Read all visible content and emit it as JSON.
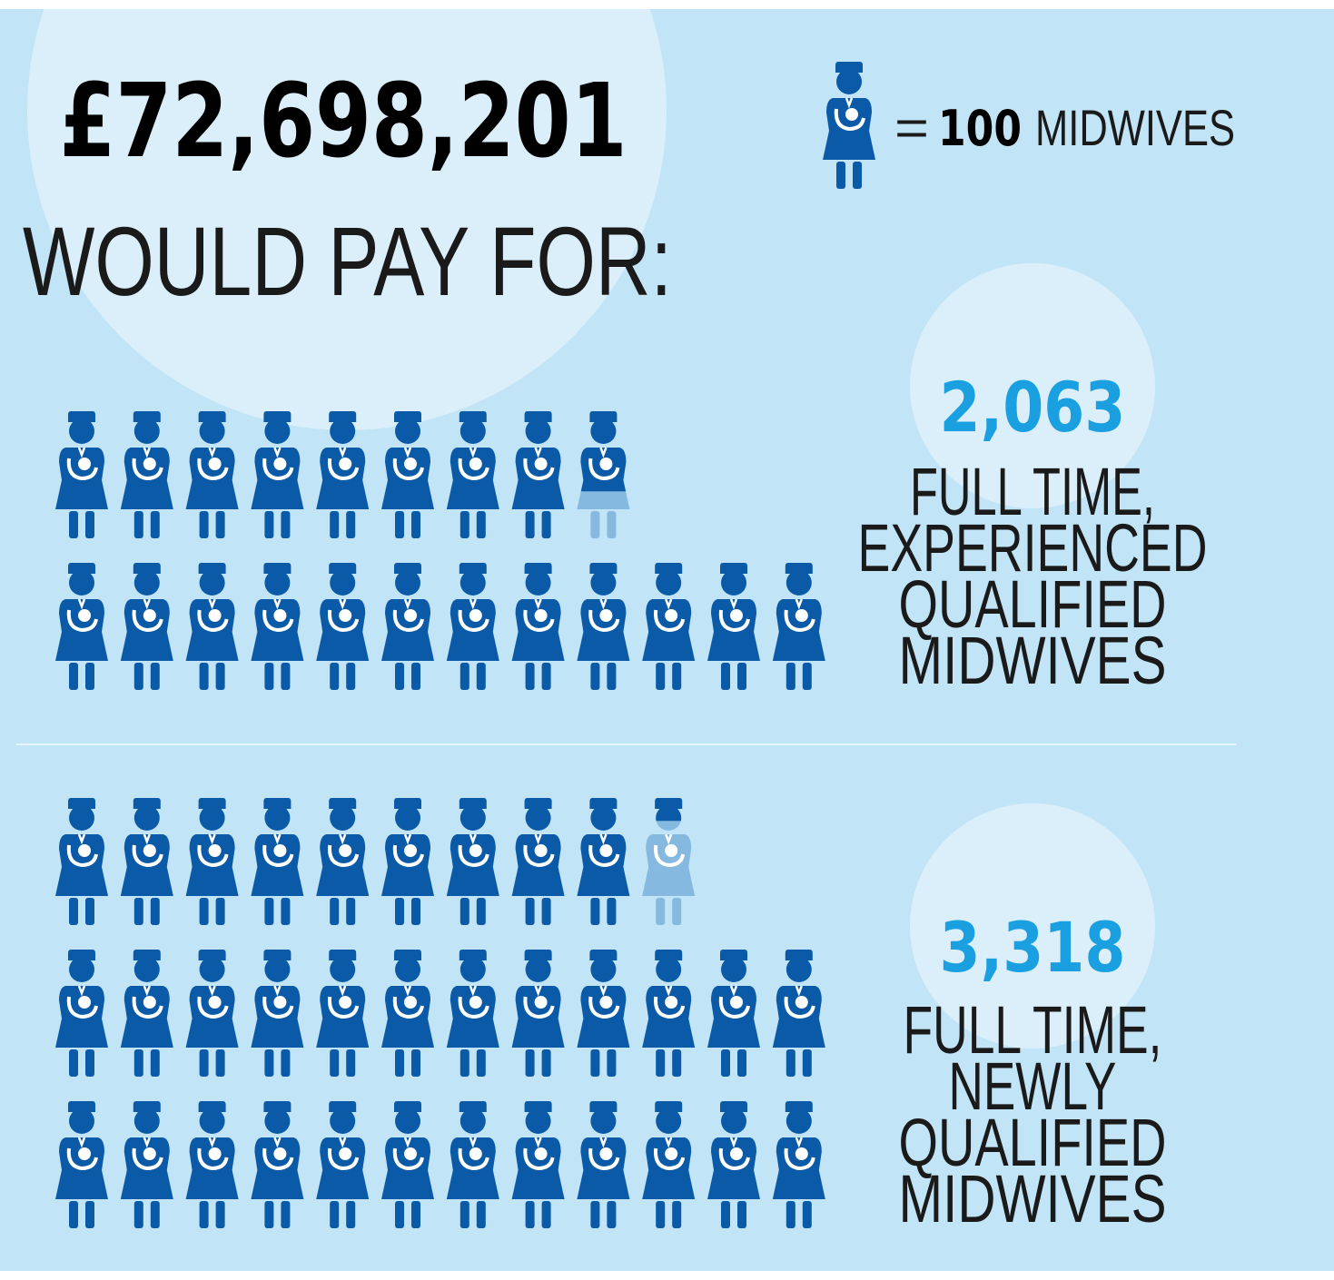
{
  "title": "£72,698,201",
  "subtitle": "WOULD PAY FOR:",
  "key": {
    "equals": "=",
    "unit": 100,
    "label": "MIDWIVES"
  },
  "icon_color": "#0b5aa8",
  "partial_color": "#86b9df",
  "number_color": "#1aa0e0",
  "sections": [
    {
      "value": 2063,
      "value_label": "2,063",
      "label_lines": [
        "FULL TIME,",
        "EXPERIENCED",
        "QUALIFIED",
        "MIDWIVES"
      ]
    },
    {
      "value": 3318,
      "value_label": "3,318",
      "label_lines": [
        "FULL TIME,",
        "NEWLY",
        "QUALIFIED",
        "MIDWIVES"
      ]
    }
  ]
}
